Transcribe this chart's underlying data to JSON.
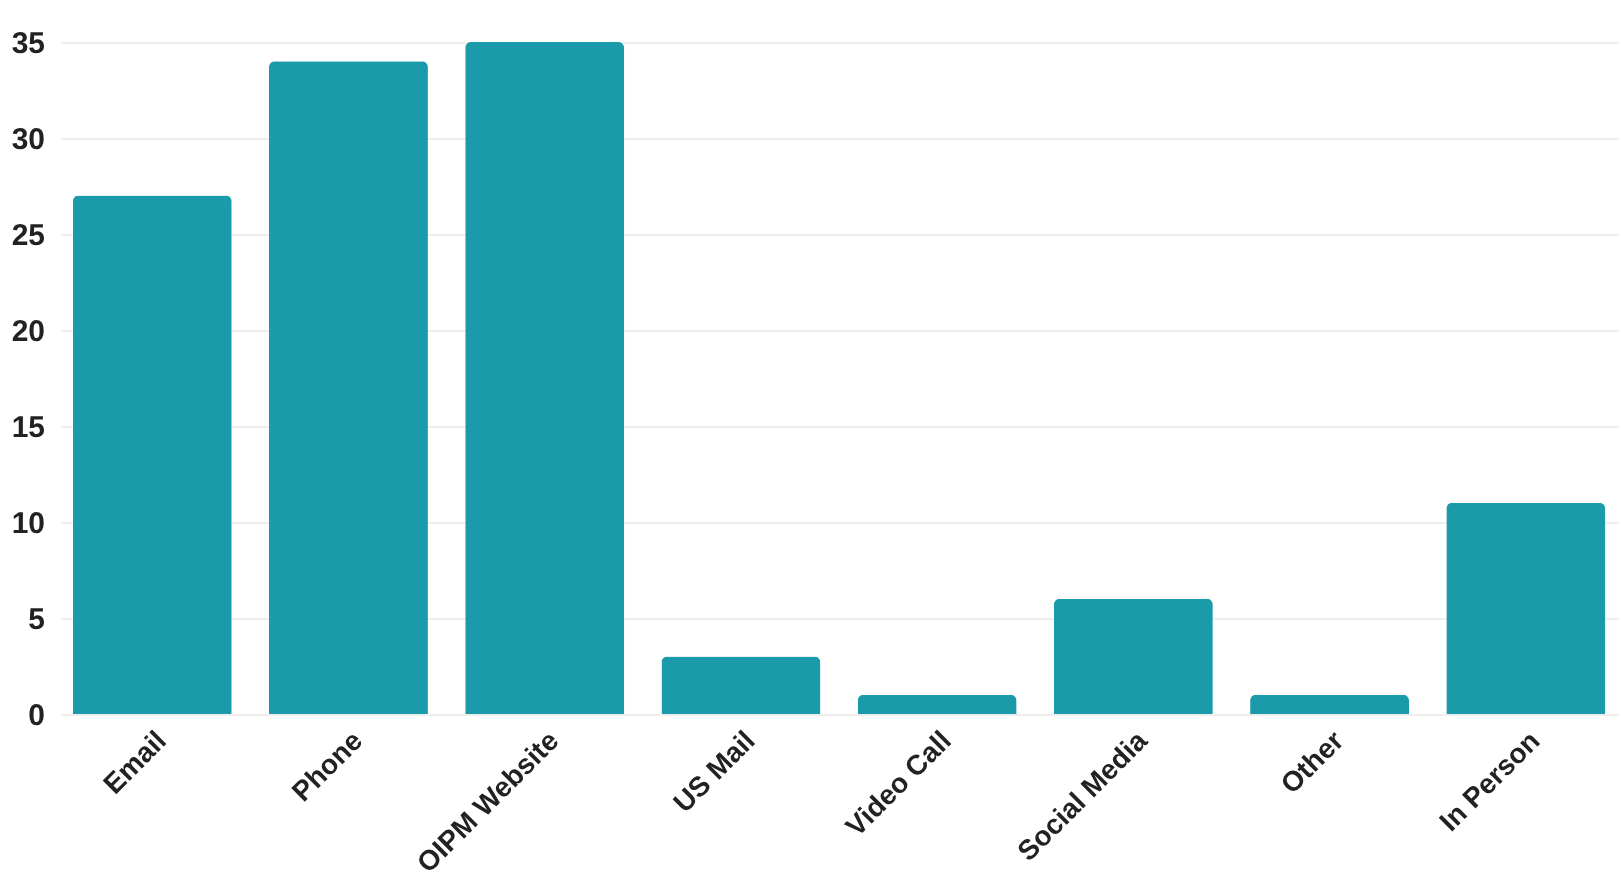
{
  "chart_data": {
    "type": "bar",
    "categories": [
      "Email",
      "Phone",
      "OIPM Website",
      "US Mail",
      "Video Call",
      "Social Media",
      "Other",
      "In Person"
    ],
    "values": [
      27,
      34,
      35,
      3,
      1,
      6,
      1,
      11
    ],
    "color": "#1b9aaa",
    "ylim": [
      0,
      35
    ],
    "yticks": [
      0,
      5,
      10,
      15,
      20,
      25,
      30,
      35
    ],
    "grid": "y"
  }
}
